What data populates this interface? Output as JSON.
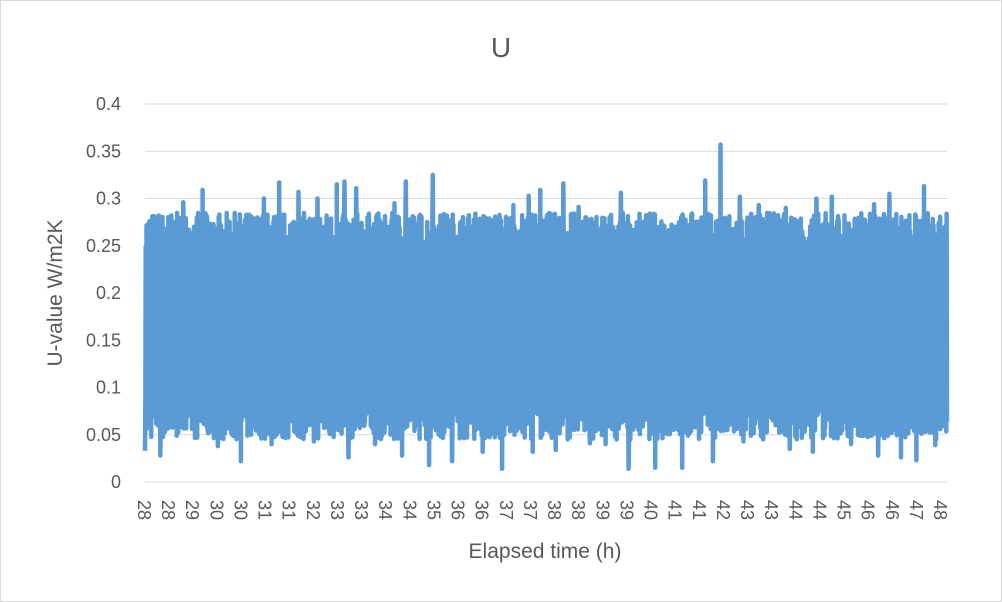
{
  "chart_data": {
    "type": "line",
    "title": "U",
    "xlabel": "Elapsed time (h)",
    "ylabel": "U-value W/m2K",
    "ylim": [
      0,
      0.4
    ],
    "y_ticks": [
      "0",
      "0.05",
      "0.1",
      "0.15",
      "0.2",
      "0.25",
      "0.3",
      "0.35",
      "0.4"
    ],
    "x_tick_labels": [
      "28",
      "28",
      "29",
      "30",
      "30",
      "31",
      "31",
      "32",
      "33",
      "33",
      "34",
      "34",
      "35",
      "36",
      "36",
      "37",
      "37",
      "38",
      "38",
      "39",
      "39",
      "40",
      "41",
      "41",
      "42",
      "43",
      "43",
      "44",
      "44",
      "45",
      "46",
      "46",
      "47",
      "48"
    ],
    "grid": "horizontal",
    "legend": "none",
    "series": [
      {
        "color": "#5b9bd5",
        "band": {
          "typical_low": 0.06,
          "typical_high": 0.27,
          "min": 0.014,
          "max": 0.357
        },
        "peaks": [
          {
            "x": 28.0,
            "y": 0.26
          },
          {
            "x": 28.2,
            "y": 0.28
          },
          {
            "x": 29.0,
            "y": 0.296
          },
          {
            "x": 29.5,
            "y": 0.309
          },
          {
            "x": 30.5,
            "y": 0.296
          },
          {
            "x": 31.1,
            "y": 0.3
          },
          {
            "x": 31.5,
            "y": 0.317
          },
          {
            "x": 32.0,
            "y": 0.307
          },
          {
            "x": 32.5,
            "y": 0.3
          },
          {
            "x": 33.0,
            "y": 0.315
          },
          {
            "x": 33.2,
            "y": 0.318
          },
          {
            "x": 33.5,
            "y": 0.311
          },
          {
            "x": 34.5,
            "y": 0.295
          },
          {
            "x": 34.8,
            "y": 0.318
          },
          {
            "x": 35.5,
            "y": 0.325
          },
          {
            "x": 36.0,
            "y": 0.296
          },
          {
            "x": 36.8,
            "y": 0.288
          },
          {
            "x": 37.6,
            "y": 0.293
          },
          {
            "x": 38.0,
            "y": 0.303
          },
          {
            "x": 38.3,
            "y": 0.309
          },
          {
            "x": 38.9,
            "y": 0.316
          },
          {
            "x": 39.3,
            "y": 0.291
          },
          {
            "x": 39.6,
            "y": 0.29
          },
          {
            "x": 40.4,
            "y": 0.306
          },
          {
            "x": 40.6,
            "y": 0.306
          },
          {
            "x": 41.3,
            "y": 0.307
          },
          {
            "x": 42.0,
            "y": 0.319
          },
          {
            "x": 42.6,
            "y": 0.319
          },
          {
            "x": 43.0,
            "y": 0.357
          },
          {
            "x": 43.5,
            "y": 0.302
          },
          {
            "x": 44.0,
            "y": 0.293
          },
          {
            "x": 44.7,
            "y": 0.29
          },
          {
            "x": 45.5,
            "y": 0.3
          },
          {
            "x": 45.9,
            "y": 0.302
          },
          {
            "x": 46.4,
            "y": 0.296
          },
          {
            "x": 47.0,
            "y": 0.294
          },
          {
            "x": 47.4,
            "y": 0.305
          },
          {
            "x": 47.7,
            "y": 0.301
          },
          {
            "x": 48.3,
            "y": 0.313
          },
          {
            "x": 48.6,
            "y": 0.288
          }
        ],
        "troughs": [
          {
            "x": 28.0,
            "y": 0.033
          },
          {
            "x": 28.4,
            "y": 0.028
          },
          {
            "x": 29.9,
            "y": 0.038
          },
          {
            "x": 30.5,
            "y": 0.022
          },
          {
            "x": 31.3,
            "y": 0.04
          },
          {
            "x": 32.4,
            "y": 0.043
          },
          {
            "x": 33.3,
            "y": 0.026
          },
          {
            "x": 34.0,
            "y": 0.04
          },
          {
            "x": 34.7,
            "y": 0.028
          },
          {
            "x": 35.4,
            "y": 0.018
          },
          {
            "x": 36.0,
            "y": 0.022
          },
          {
            "x": 36.8,
            "y": 0.032
          },
          {
            "x": 37.3,
            "y": 0.014
          },
          {
            "x": 38.1,
            "y": 0.032
          },
          {
            "x": 38.7,
            "y": 0.034
          },
          {
            "x": 39.6,
            "y": 0.041
          },
          {
            "x": 40.0,
            "y": 0.04
          },
          {
            "x": 40.6,
            "y": 0.014
          },
          {
            "x": 41.3,
            "y": 0.015
          },
          {
            "x": 42.0,
            "y": 0.015
          },
          {
            "x": 42.8,
            "y": 0.022
          },
          {
            "x": 43.6,
            "y": 0.043
          },
          {
            "x": 44.8,
            "y": 0.035
          },
          {
            "x": 45.4,
            "y": 0.032
          },
          {
            "x": 46.4,
            "y": 0.04
          },
          {
            "x": 47.1,
            "y": 0.028
          },
          {
            "x": 47.7,
            "y": 0.026
          },
          {
            "x": 48.1,
            "y": 0.023
          },
          {
            "x": 48.6,
            "y": 0.039
          }
        ]
      }
    ]
  }
}
